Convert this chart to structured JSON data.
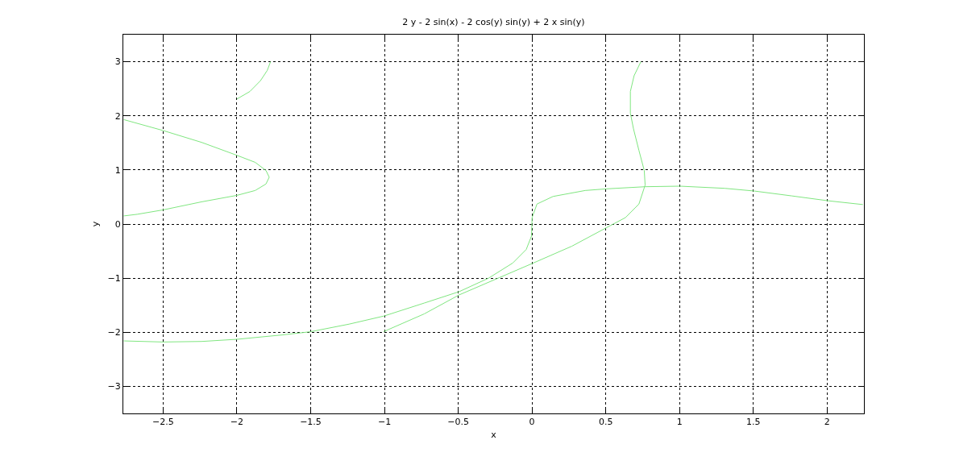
{
  "chart_data": {
    "type": "line",
    "title": "2 y - 2 sin(x) - 2 cos(y) sin(y) + 2 x sin(y)",
    "xlabel": "x",
    "ylabel": "y",
    "xlim": [
      -2.77,
      2.25
    ],
    "ylim": [
      -3.5,
      3.5
    ],
    "xticks": [
      -2.5,
      -2,
      -1.5,
      -1,
      -0.5,
      0,
      0.5,
      1,
      1.5,
      2
    ],
    "yticks": [
      -3,
      -2,
      -1,
      0,
      1,
      2,
      3
    ],
    "grid": true,
    "line_style": "solid",
    "series": [
      {
        "color": "#80e680",
        "x": [
          -2.0,
          -1.912,
          -1.84,
          -1.794,
          -1.772
        ],
        "values": [
          2.31,
          2.45,
          2.65,
          2.84,
          3.0
        ]
      },
      {
        "color": "#80e680",
        "x": [
          -2.767,
          -2.503,
          -2.24,
          -2.0,
          -1.876,
          -1.803,
          -1.781,
          -1.803,
          -1.876,
          -2.0,
          -2.24,
          -2.503,
          -2.676,
          -2.767
        ],
        "values": [
          1.93,
          1.73,
          1.51,
          1.27,
          1.14,
          0.99,
          0.865,
          0.74,
          0.62,
          0.53,
          0.41,
          0.26,
          0.18,
          0.15
        ]
      },
      {
        "color": "#80e680",
        "x": [
          -2.767,
          -2.503,
          -2.24,
          -2.0,
          -1.694,
          -1.501,
          -1.24,
          -1.003,
          -0.73,
          -0.494,
          -0.294,
          -0.13,
          -0.039,
          -0.003,
          0.001,
          0.034,
          0.143,
          0.361,
          0.503,
          0.77,
          1.003,
          1.307,
          1.507,
          1.761,
          2.007,
          2.243
        ],
        "values": [
          -2.16,
          -2.18,
          -2.17,
          -2.13,
          -2.05,
          -1.99,
          -1.85,
          -1.7,
          -1.46,
          -1.25,
          -1.0,
          -0.72,
          -0.47,
          -0.22,
          0.12,
          0.37,
          0.51,
          0.62,
          0.65,
          0.69,
          0.7,
          0.66,
          0.61,
          0.52,
          0.43,
          0.36
        ]
      },
      {
        "color": "#80e680",
        "x": [
          -1.007,
          -0.73,
          -0.494,
          -0.221,
          0.001,
          0.27,
          0.503,
          0.634,
          0.725,
          0.767,
          0.761,
          0.725,
          0.688,
          0.667,
          0.667,
          0.692,
          0.738
        ],
        "values": [
          -1.99,
          -1.66,
          -1.31,
          -0.99,
          -0.73,
          -0.41,
          -0.07,
          0.12,
          0.37,
          0.72,
          0.99,
          1.36,
          1.76,
          2.05,
          2.45,
          2.74,
          3.0
        ]
      }
    ]
  }
}
